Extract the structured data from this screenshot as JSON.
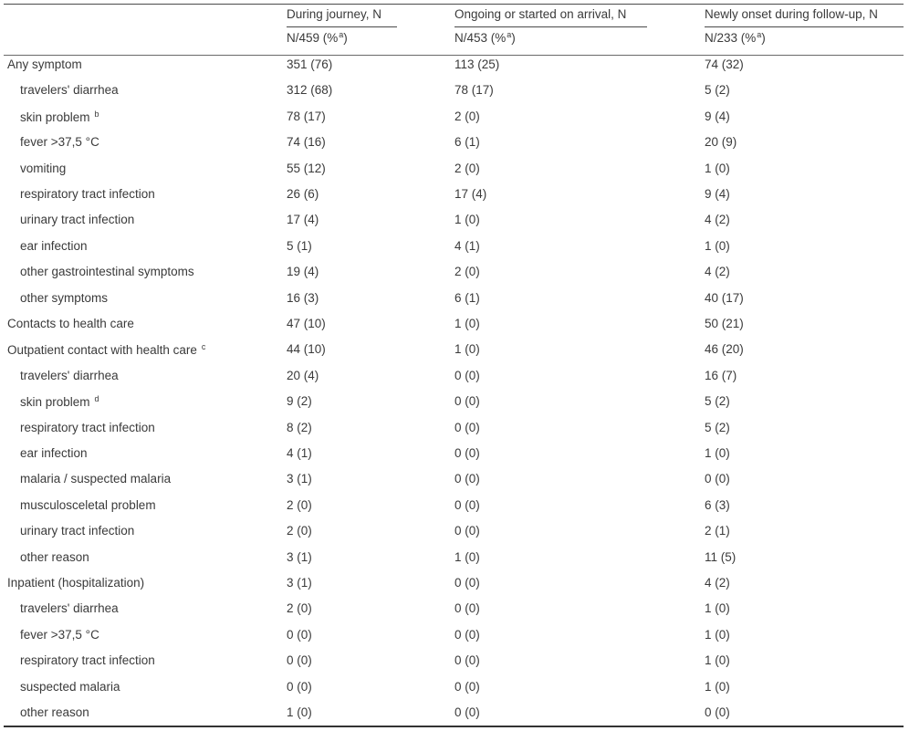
{
  "header": {
    "col1_title": "During journey, N",
    "col2_title": "Ongoing or started on arrival, N",
    "col3_title": "Newly onset during follow-up, N",
    "col1_sub_prefix": "N/459 (%",
    "col2_sub_prefix": "N/453 (%",
    "col3_sub_prefix": "N/233 (%",
    "sub_sup": "a",
    "sub_suffix": ")"
  },
  "rows": [
    {
      "label": "Any symptom",
      "sup": "",
      "c1": "351 (76)",
      "c2": "113 (25)",
      "c3": "74 (32)"
    },
    {
      "label": "travelers' diarrhea",
      "sup": "",
      "c1": "312 (68)",
      "c2": "78 (17)",
      "c3": "5 (2)"
    },
    {
      "label": "skin problem",
      "sup": "b",
      "c1": "78 (17)",
      "c2": "2 (0)",
      "c3": "9 (4)"
    },
    {
      "label": "fever >37,5 °C",
      "sup": "",
      "c1": "74 (16)",
      "c2": "6 (1)",
      "c3": "20 (9)"
    },
    {
      "label": "vomiting",
      "sup": "",
      "c1": "55 (12)",
      "c2": "2 (0)",
      "c3": "1 (0)"
    },
    {
      "label": "respiratory tract infection",
      "sup": "",
      "c1": "26 (6)",
      "c2": "17 (4)",
      "c3": "9 (4)"
    },
    {
      "label": "urinary tract infection",
      "sup": "",
      "c1": "17 (4)",
      "c2": "1 (0)",
      "c3": "4 (2)"
    },
    {
      "label": "ear infection",
      "sup": "",
      "c1": "5 (1)",
      "c2": "4 (1)",
      "c3": "1 (0)"
    },
    {
      "label": "other gastrointestinal symptoms",
      "sup": "",
      "c1": "19 (4)",
      "c2": "2 (0)",
      "c3": "4 (2)"
    },
    {
      "label": "other symptoms",
      "sup": "",
      "c1": "16 (3)",
      "c2": "6 (1)",
      "c3": "40 (17)"
    },
    {
      "label": "Contacts to health care",
      "sup": "",
      "c1": "47 (10)",
      "c2": "1 (0)",
      "c3": "50 (21)"
    },
    {
      "label": "Outpatient contact with health care",
      "sup": "c",
      "c1": "44 (10)",
      "c2": "1 (0)",
      "c3": "46 (20)"
    },
    {
      "label": "travelers' diarrhea",
      "sup": "",
      "c1": "20 (4)",
      "c2": "0 (0)",
      "c3": "16 (7)"
    },
    {
      "label": "skin problem",
      "sup": "d",
      "c1": "9 (2)",
      "c2": "0 (0)",
      "c3": "5 (2)"
    },
    {
      "label": "respiratory tract infection",
      "sup": "",
      "c1": "8 (2)",
      "c2": "0 (0)",
      "c3": "5 (2)"
    },
    {
      "label": "ear infection",
      "sup": "",
      "c1": "4 (1)",
      "c2": "0 (0)",
      "c3": "1 (0)"
    },
    {
      "label": "malaria / suspected malaria",
      "sup": "",
      "c1": "3 (1)",
      "c2": "0 (0)",
      "c3": "0 (0)"
    },
    {
      "label": "musculosceletal problem",
      "sup": "",
      "c1": "2 (0)",
      "c2": "0 (0)",
      "c3": "6 (3)"
    },
    {
      "label": "urinary tract infection",
      "sup": "",
      "c1": "2 (0)",
      "c2": "0 (0)",
      "c3": "2 (1)"
    },
    {
      "label": "other reason",
      "sup": "",
      "c1": "3 (1)",
      "c2": "1 (0)",
      "c3": "11 (5)"
    },
    {
      "label": "Inpatient (hospitalization)",
      "sup": "",
      "c1": "3 (1)",
      "c2": "0 (0)",
      "c3": "4 (2)"
    },
    {
      "label": "travelers' diarrhea",
      "sup": "",
      "c1": "2 (0)",
      "c2": "0 (0)",
      "c3": "1 (0)"
    },
    {
      "label": "fever >37,5 °C",
      "sup": "",
      "c1": "0 (0)",
      "c2": "0 (0)",
      "c3": "1 (0)"
    },
    {
      "label": "respiratory tract infection",
      "sup": "",
      "c1": "0 (0)",
      "c2": "0 (0)",
      "c3": "1 (0)"
    },
    {
      "label": "suspected malaria",
      "sup": "",
      "c1": "0 (0)",
      "c2": "0 (0)",
      "c3": "1 (0)"
    },
    {
      "label": "other reason",
      "sup": "",
      "c1": "1 (0)",
      "c2": "0 (0)",
      "c3": "0 (0)"
    }
  ]
}
